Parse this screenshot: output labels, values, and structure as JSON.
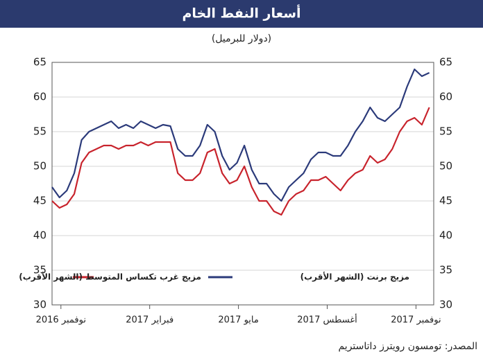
{
  "chart_data": {
    "type": "line",
    "title": "أسعار النفط الخام",
    "subtitle": "(دولار للبرميل)",
    "source": "المصدر: تومسون رويترز داتاستريم",
    "x": [
      -0.3,
      -0.05,
      0.2,
      0.45,
      0.7,
      0.95,
      1.2,
      1.45,
      1.7,
      1.95,
      2.2,
      2.45,
      2.7,
      2.95,
      3.2,
      3.45,
      3.7,
      3.95,
      4.2,
      4.45,
      4.7,
      4.95,
      5.2,
      5.45,
      5.7,
      5.95,
      6.2,
      6.45,
      6.7,
      6.95,
      7.2,
      7.45,
      7.7,
      7.95,
      8.2,
      8.45,
      8.7,
      8.95,
      9.2,
      9.45,
      9.7,
      9.95,
      10.2,
      10.45,
      10.7,
      10.95,
      11.2,
      11.45,
      11.7,
      11.95,
      12.2,
      12.45
    ],
    "series": [
      {
        "name": "مزيج برنت (الشهر الأقرب)",
        "color": "#2b3a7a",
        "values": [
          47,
          45.5,
          46.5,
          49,
          53.8,
          55,
          55.5,
          56,
          56.5,
          55.5,
          56,
          55.5,
          56.5,
          56,
          55.5,
          56,
          55.8,
          52.5,
          51.5,
          51.5,
          53,
          56,
          55,
          51.5,
          49.5,
          50.5,
          53,
          49.5,
          47.5,
          47.5,
          46,
          45,
          47,
          48,
          49,
          51,
          52,
          52,
          51.5,
          51.5,
          53,
          55,
          56.5,
          58.5,
          57,
          56.5,
          57.5,
          58.5,
          61.5,
          64,
          63,
          63.5
        ]
      },
      {
        "name": "مزيج غرب تكساس المتوسط (الشهر الأقرب)",
        "color": "#c8232c",
        "values": [
          45,
          44,
          44.5,
          46,
          50.5,
          52,
          52.5,
          53,
          53,
          52.5,
          53,
          53,
          53.5,
          53,
          53.5,
          53.5,
          53.5,
          49,
          48,
          48,
          49,
          52,
          52.5,
          49,
          47.5,
          48,
          50,
          47,
          45,
          45,
          43.5,
          43,
          45,
          46,
          46.5,
          48,
          48,
          48.5,
          47.5,
          46.5,
          48,
          49,
          49.5,
          51.5,
          50.5,
          51,
          52.5,
          55,
          56.5,
          57,
          56,
          58.5
        ]
      }
    ],
    "xlim": [
      -0.3,
      12.6
    ],
    "xticks": [
      {
        "value": 0,
        "label": "نوفمبر 2016"
      },
      {
        "value": 3,
        "label": "فبراير 2017"
      },
      {
        "value": 6,
        "label": "مايو 2017"
      },
      {
        "value": 9,
        "label": "أغسطس 2017"
      },
      {
        "value": 12,
        "label": "نوفمبر 2017"
      }
    ],
    "ylim": [
      30,
      65
    ],
    "yticks": [
      30,
      35,
      40,
      45,
      50,
      55,
      60,
      65
    ],
    "grid": true
  }
}
